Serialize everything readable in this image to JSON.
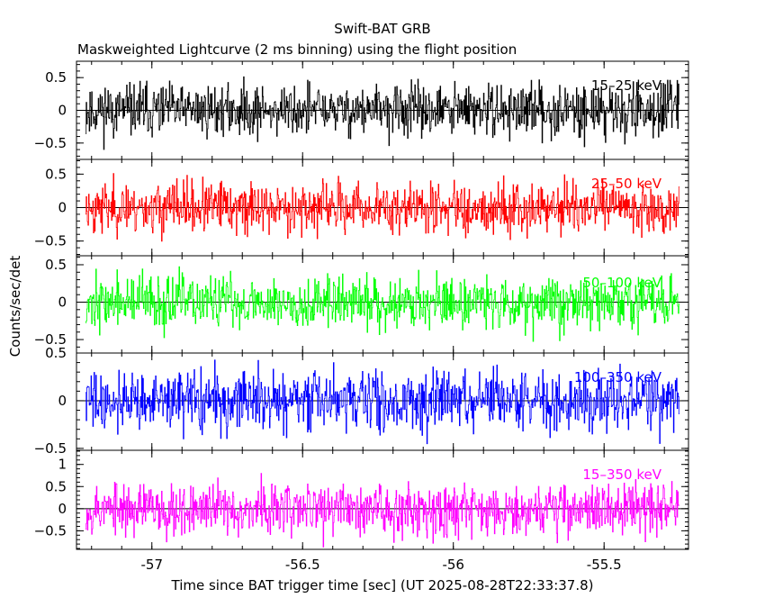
{
  "chart_data": {
    "type": "line",
    "title": "Swift-BAT GRB",
    "subtitle": "Maskweighted Lightcurve (2 ms binning) using the flight position",
    "xlabel": "Time since BAT trigger time [sec] (UT 2025-08-28T22:33:37.8)",
    "ylabel": "Counts/sec/det",
    "xlim": [
      -57.25,
      -55.22
    ],
    "x_ticks": [
      -57,
      -56.5,
      -56,
      -55.5
    ],
    "x_tick_labels": [
      "-57",
      "-56.5",
      "-56",
      "-55.5"
    ],
    "bin_width_s": 0.002,
    "data_start": -57.22,
    "data_end": -55.25,
    "panels": [
      {
        "name": "15-25 keV",
        "label": "15–25 keV",
        "color": "#000000",
        "ylim": [
          -0.75,
          0.75
        ],
        "y_ticks": [
          -0.5,
          0,
          0.5
        ],
        "y_tick_labels": [
          "−0.5",
          "0",
          "0.5"
        ],
        "noise_amplitude": 0.28,
        "seed": 11
      },
      {
        "name": "25-50 keV",
        "label": "25–50 keV",
        "color": "#ff0000",
        "ylim": [
          -0.72,
          0.72
        ],
        "y_ticks": [
          -0.5,
          0,
          0.5
        ],
        "y_tick_labels": [
          "−0.5",
          "0",
          "0.5"
        ],
        "noise_amplitude": 0.27,
        "seed": 23
      },
      {
        "name": "50-100 keV",
        "label": "50–100 keV",
        "color": "#00ff00",
        "ylim": [
          -0.68,
          0.62
        ],
        "y_ticks": [
          -0.5,
          0,
          0.5
        ],
        "y_tick_labels": [
          "−0.5",
          "0",
          "0.5"
        ],
        "noise_amplitude": 0.25,
        "seed": 37
      },
      {
        "name": "100-350 keV",
        "label": "100–350 keV",
        "color": "#0000ff",
        "ylim": [
          -0.52,
          0.5
        ],
        "y_ticks": [
          -0.5,
          0,
          0.5
        ],
        "y_tick_labels": [
          "−0.5",
          "0",
          "0.5"
        ],
        "noise_amplitude": 0.22,
        "seed": 41
      },
      {
        "name": "15-350 keV",
        "label": "15–350 keV",
        "color": "#ff00ff",
        "ylim": [
          -0.92,
          1.32
        ],
        "y_ticks": [
          -0.5,
          0,
          0.5,
          1
        ],
        "y_tick_labels": [
          "−0.5",
          "0",
          "0.5",
          "1"
        ],
        "noise_amplitude": 0.42,
        "seed": 53
      }
    ]
  }
}
